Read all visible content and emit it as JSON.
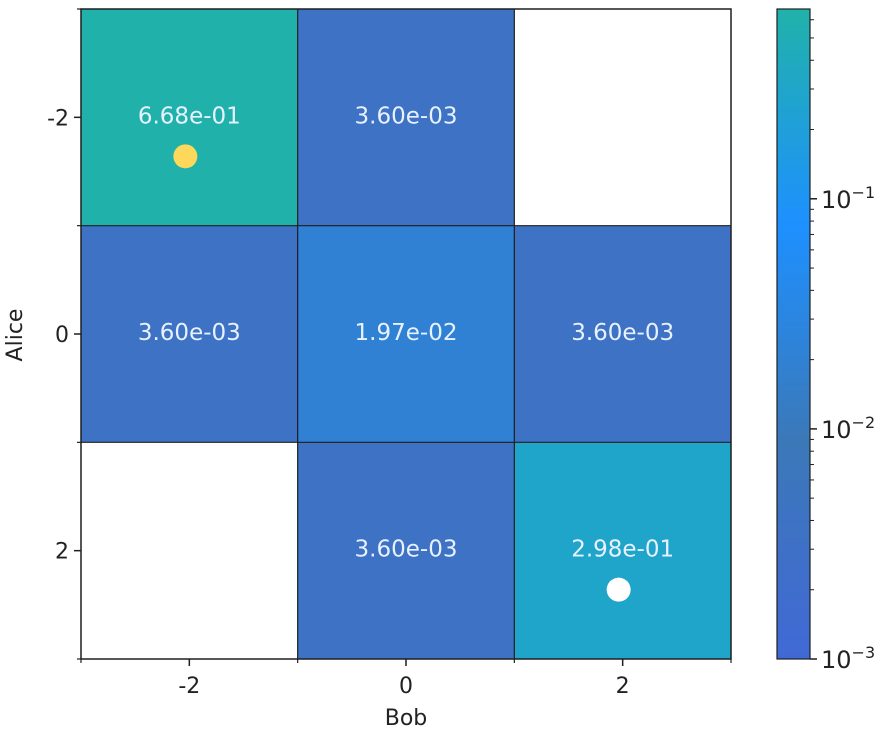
{
  "chart_data": {
    "type": "heatmap",
    "xlabel": "Bob",
    "ylabel": "Alice",
    "x_categories": [
      -2,
      0,
      2
    ],
    "y_categories": [
      -2,
      0,
      2
    ],
    "x_tick_labels": [
      "-2",
      "0",
      "2"
    ],
    "y_tick_labels": [
      "-2",
      "0",
      "2"
    ],
    "cells": [
      {
        "row": 0,
        "col": 0,
        "value": 0.668,
        "label": "6.68e-01"
      },
      {
        "row": 0,
        "col": 1,
        "value": 0.0036,
        "label": "3.60e-03"
      },
      {
        "row": 0,
        "col": 2,
        "value": null,
        "label": ""
      },
      {
        "row": 1,
        "col": 0,
        "value": 0.0036,
        "label": "3.60e-03"
      },
      {
        "row": 1,
        "col": 1,
        "value": 0.0197,
        "label": "1.97e-02"
      },
      {
        "row": 1,
        "col": 2,
        "value": 0.0036,
        "label": "3.60e-03"
      },
      {
        "row": 2,
        "col": 0,
        "value": null,
        "label": ""
      },
      {
        "row": 2,
        "col": 1,
        "value": 0.0036,
        "label": "3.60e-03"
      },
      {
        "row": 2,
        "col": 2,
        "value": 0.298,
        "label": "2.98e-01"
      }
    ],
    "markers": [
      {
        "x": -2,
        "y": -2,
        "color": "#fdd85a"
      },
      {
        "x": 2,
        "y": 2,
        "color": "#ffffff"
      }
    ],
    "colorbar": {
      "scale": "log",
      "range": [
        0.001,
        0.668
      ],
      "ticks": [
        {
          "value": 0.001,
          "base": "10",
          "exp": "−3"
        },
        {
          "value": 0.01,
          "base": "10",
          "exp": "−2"
        },
        {
          "value": 0.1,
          "base": "10",
          "exp": "−1"
        }
      ],
      "colors": [
        "#4169d6",
        "#3b78b8",
        "#1e90ff",
        "#20b2aa"
      ]
    }
  }
}
